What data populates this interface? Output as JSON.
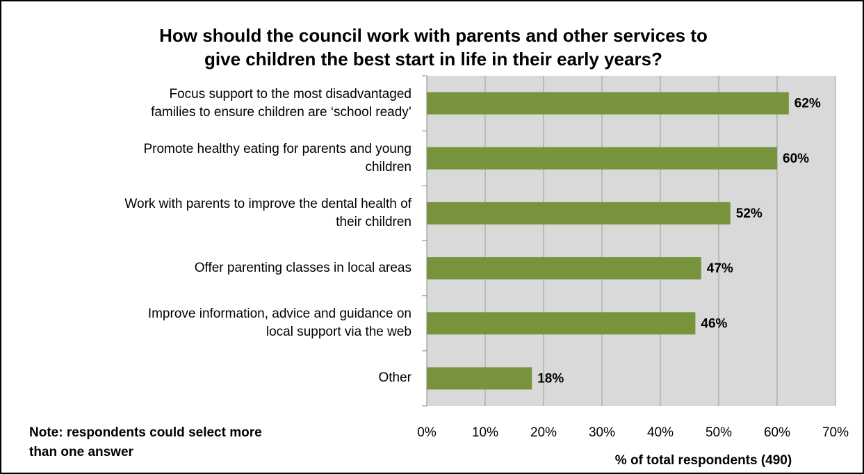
{
  "chart_data": {
    "type": "bar",
    "orientation": "horizontal",
    "title": "How should the council work with parents and other services to\ngive children the best start in life in their early years?",
    "categories": [
      "Focus support to the most disadvantaged\nfamilies to ensure children are ‘school ready’",
      "Promote healthy eating for parents and young\nchildren",
      "Work with parents to improve the dental health of\ntheir children",
      "Offer parenting classes in local areas",
      "Improve information, advice and guidance on\nlocal support via the web",
      "Other"
    ],
    "values": [
      62,
      60,
      52,
      47,
      46,
      18
    ],
    "value_labels": [
      "62%",
      "60%",
      "52%",
      "47%",
      "46%",
      "18%"
    ],
    "color": "#77933c",
    "xlim": [
      0,
      70
    ],
    "xticks": [
      {
        "value": 0,
        "label": "0%"
      },
      {
        "value": 10,
        "label": "10%"
      },
      {
        "value": 20,
        "label": "20%"
      },
      {
        "value": 30,
        "label": "30%"
      },
      {
        "value": 40,
        "label": "40%"
      },
      {
        "value": 50,
        "label": "50%"
      },
      {
        "value": 60,
        "label": "60%"
      },
      {
        "value": 70,
        "label": "70%"
      }
    ],
    "x_label": "% of total respondents (490)",
    "annotation": "Note: respondents could select more\nthan one answer",
    "grid": true
  }
}
